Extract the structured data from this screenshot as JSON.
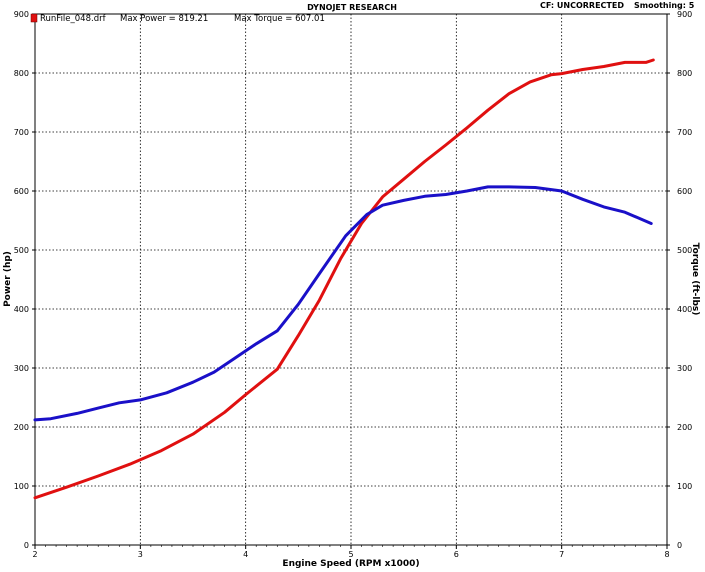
{
  "header": {
    "title": "DYNOJET RESEARCH",
    "cf_label": "CF: UNCORRECTED",
    "smoothing_label": "Smoothing: 5"
  },
  "legend": {
    "run_file": "RunFile_048.drf",
    "max_power": "Max Power = 819.21",
    "max_torque": "Max Torque = 607.01",
    "marker_color": "#e01010"
  },
  "chart_data": {
    "type": "line",
    "xlabel": "Engine Speed (RPM x1000)",
    "ylabel_left": "Power (hp)",
    "ylabel_right": "Torque (ft-lbs)",
    "xlim": [
      2,
      8
    ],
    "ylim": [
      0,
      900
    ],
    "x_ticks": [
      2,
      3,
      4,
      5,
      6,
      7,
      8
    ],
    "y_ticks": [
      0,
      100,
      200,
      300,
      400,
      500,
      600,
      700,
      800,
      900
    ],
    "grid": true,
    "grid_style": "dotted",
    "series": [
      {
        "name": "Power",
        "color": "#e01010",
        "x": [
          2.0,
          2.3,
          2.6,
          2.9,
          3.2,
          3.5,
          3.8,
          4.0,
          4.3,
          4.5,
          4.7,
          4.9,
          5.1,
          5.3,
          5.5,
          5.7,
          5.9,
          6.1,
          6.3,
          6.5,
          6.7,
          6.9,
          7.0,
          7.2,
          7.4,
          7.6,
          7.8,
          7.87
        ],
        "values": [
          80,
          98,
          117,
          137,
          160,
          188,
          225,
          255,
          298,
          355,
          415,
          485,
          545,
          590,
          620,
          650,
          678,
          707,
          737,
          765,
          785,
          797,
          799,
          806,
          811,
          818,
          818,
          822
        ]
      },
      {
        "name": "Torque",
        "color": "#1a10c8",
        "x": [
          2.0,
          2.15,
          2.4,
          2.6,
          2.8,
          3.0,
          3.25,
          3.5,
          3.7,
          3.9,
          4.1,
          4.3,
          4.5,
          4.7,
          4.95,
          5.15,
          5.3,
          5.5,
          5.7,
          5.9,
          6.1,
          6.3,
          6.5,
          6.75,
          7.0,
          7.2,
          7.4,
          7.6,
          7.85
        ],
        "values": [
          212,
          214,
          223,
          232,
          241,
          246,
          258,
          276,
          293,
          317,
          341,
          363,
          408,
          460,
          524,
          560,
          576,
          584,
          591,
          594,
          600,
          607,
          607,
          606,
          600,
          586,
          573,
          564,
          545
        ]
      }
    ]
  }
}
